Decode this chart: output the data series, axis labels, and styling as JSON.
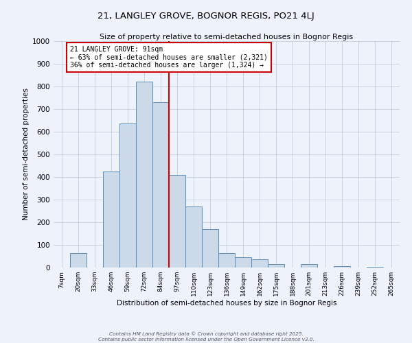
{
  "title": "21, LANGLEY GROVE, BOGNOR REGIS, PO21 4LJ",
  "subtitle": "Size of property relative to semi-detached houses in Bognor Regis",
  "xlabel": "Distribution of semi-detached houses by size in Bognor Regis",
  "ylabel": "Number of semi-detached properties",
  "bin_labels": [
    "7sqm",
    "20sqm",
    "33sqm",
    "46sqm",
    "59sqm",
    "72sqm",
    "84sqm",
    "97sqm",
    "110sqm",
    "123sqm",
    "136sqm",
    "149sqm",
    "162sqm",
    "175sqm",
    "188sqm",
    "201sqm",
    "213sqm",
    "226sqm",
    "239sqm",
    "252sqm",
    "265sqm"
  ],
  "bin_values": [
    0,
    65,
    0,
    425,
    635,
    820,
    730,
    410,
    270,
    170,
    65,
    45,
    35,
    15,
    0,
    15,
    0,
    5,
    0,
    3,
    0
  ],
  "bar_color": "#ccd9e8",
  "bar_edge_color": "#5b8db8",
  "vline_x": 6.5,
  "vline_color": "#cc0000",
  "annotation_title": "21 LANGLEY GROVE: 91sqm",
  "annotation_line2": "← 63% of semi-detached houses are smaller (2,321)",
  "annotation_line3": "36% of semi-detached houses are larger (1,324) →",
  "annotation_box_color": "#cc0000",
  "ylim": [
    0,
    1000
  ],
  "yticks": [
    0,
    100,
    200,
    300,
    400,
    500,
    600,
    700,
    800,
    900,
    1000
  ],
  "background_color": "#eef2fa",
  "footer1": "Contains HM Land Registry data © Crown copyright and database right 2025.",
  "footer2": "Contains public sector information licensed under the Open Government Licence v3.0."
}
